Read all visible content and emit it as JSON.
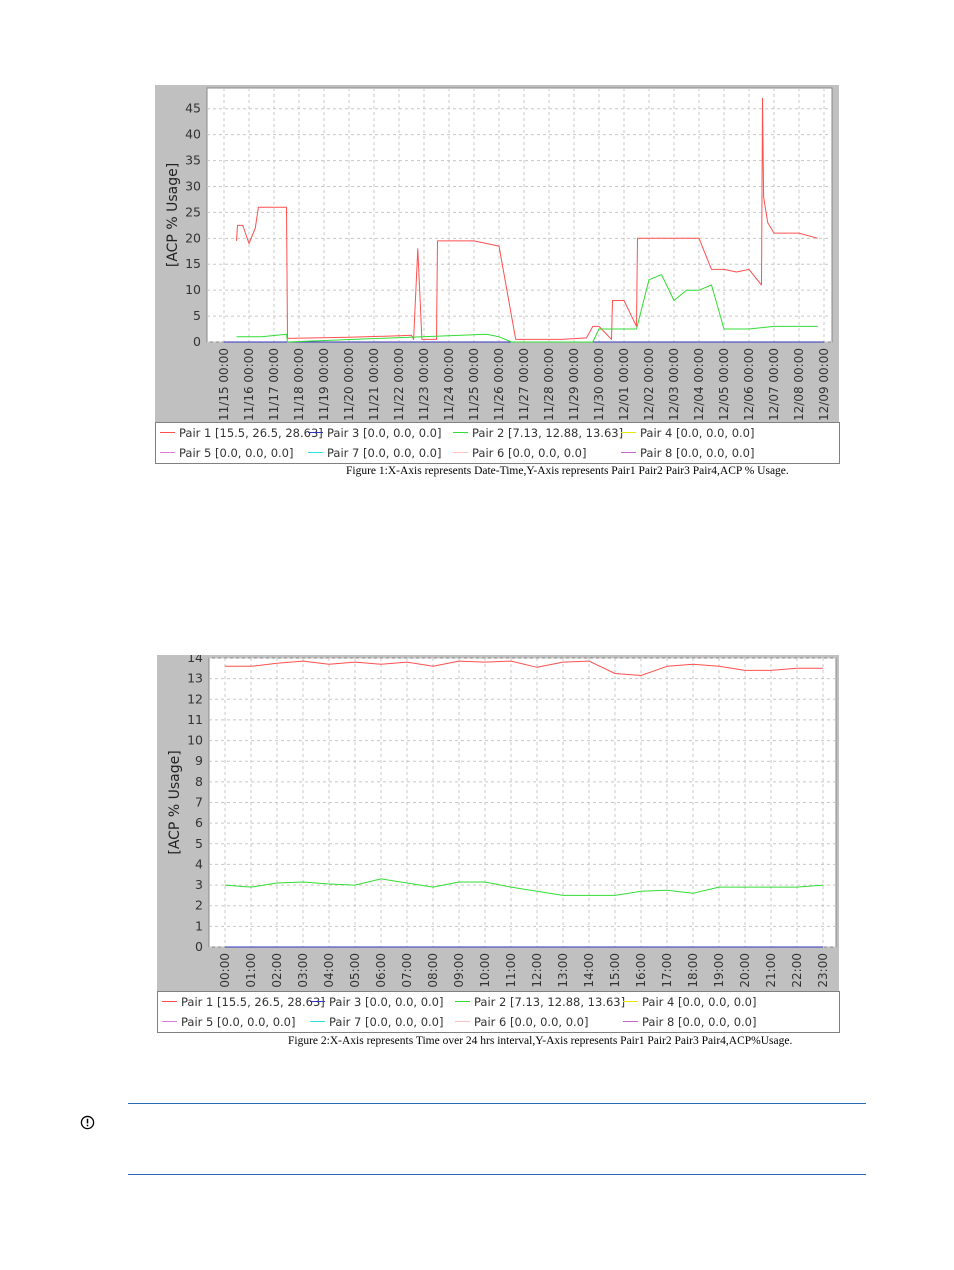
{
  "colors": {
    "pair1": "#ff5050",
    "pair2": "#33dd33",
    "pair3": "#3333bb",
    "pair4": "#e6e600",
    "pair5": "#e07ad8",
    "pair6": "#ffc0c0",
    "pair7": "#30e0e0",
    "pair8": "#cc66cc",
    "frame": "#c0c0c0",
    "grid": "#c8c8c8",
    "rule": "#2b6cb0"
  },
  "chart_data": [
    {
      "type": "line",
      "ylabel": "[ACP % Usage]",
      "xlabel": "",
      "ylim": [
        0,
        49
      ],
      "yticks": [
        0,
        5,
        10,
        15,
        20,
        25,
        30,
        35,
        40,
        45
      ],
      "x_tick_labels": [
        "11/15 00:00",
        "11/16 00:00",
        "11/17 00:00",
        "11/18 00:00",
        "11/19 00:00",
        "11/20 00:00",
        "11/21 00:00",
        "11/22 00:00",
        "11/23 00:00",
        "11/24 00:00",
        "11/25 00:00",
        "11/26 00:00",
        "11/27 00:00",
        "11/28 00:00",
        "11/29 00:00",
        "11/30 00:00",
        "12/01 00:00",
        "12/02 00:00",
        "12/03 00:00",
        "12/04 00:00",
        "12/05 00:00",
        "12/06 00:00",
        "12/07 00:00",
        "12/08 00:00",
        "12/09 00:00"
      ],
      "grid": true,
      "series": [
        {
          "name": "Pair 1",
          "color_key": "pair1",
          "x": [
            "11/15 12:00",
            "11/15 13:00",
            "11/15 18:00",
            "11/16 00:00",
            "11/16 06:00",
            "11/16 09:00",
            "11/16 15:00",
            "11/17 00:00",
            "11/17 12:00",
            "11/17 13:00",
            "11/20 00:00",
            "11/22 00:00",
            "11/22 12:00",
            "11/22 14:00",
            "11/22 18:00",
            "11/22 22:00",
            "11/23 12:00",
            "11/23 13:00",
            "11/24 00:00",
            "11/25 00:00",
            "11/26 00:00",
            "11/26 16:00",
            "11/27 12:00",
            "11/28 12:00",
            "11/29 12:00",
            "11/29 18:00",
            "11/30 00:00",
            "11/30 12:00",
            "11/30 13:00",
            "12/01 00:00",
            "12/01 12:00",
            "12/01 13:00",
            "12/02 00:00",
            "12/02 12:00",
            "12/03 00:00",
            "12/04 00:00",
            "12/04 12:00",
            "12/05 00:00",
            "12/05 12:00",
            "12/06 00:00",
            "12/06 12:00",
            "12/06 13:00",
            "12/06 14:00",
            "12/06 18:00",
            "12/07 00:00",
            "12/08 00:00",
            "12/08 18:00"
          ],
          "values": [
            19.5,
            22.5,
            22.5,
            19,
            22,
            26,
            26,
            26,
            26,
            0.7,
            0.9,
            1.2,
            1.3,
            0.5,
            18,
            0.5,
            0.5,
            19.5,
            19.5,
            19.5,
            18.5,
            0.5,
            0.5,
            0.5,
            0.8,
            3,
            3,
            0.5,
            8,
            8,
            3,
            20,
            20,
            20,
            20,
            20,
            14,
            14,
            13.5,
            14,
            11,
            47,
            28,
            23,
            21,
            21,
            20
          ]
        },
        {
          "name": "Pair 3",
          "color_key": "pair3",
          "x": [
            "11/15 00:00",
            "12/09 00:00"
          ],
          "values": [
            0.0,
            0.0
          ]
        },
        {
          "name": "Pair 2",
          "color_key": "pair2",
          "x": [
            "11/15 12:00",
            "11/16 12:00",
            "11/17 12:00",
            "11/17 13:00",
            "11/25 12:00",
            "11/26 00:00",
            "11/26 12:00",
            "11/27 00:00",
            "11/29 18:00",
            "11/30 00:00",
            "11/30 12:00",
            "12/01 00:00",
            "12/01 12:00",
            "12/02 00:00",
            "12/02 12:00",
            "12/03 00:00",
            "12/03 12:00",
            "12/04 00:00",
            "12/04 12:00",
            "12/05 00:00",
            "12/06 00:00",
            "12/07 00:00",
            "12/08 00:00",
            "12/08 18:00"
          ],
          "values": [
            1.0,
            1.0,
            1.5,
            0.0,
            1.5,
            1.0,
            0.0,
            0.0,
            0.0,
            2.5,
            2.5,
            2.5,
            2.5,
            12,
            13,
            8,
            10,
            10,
            11,
            2.5,
            2.5,
            3.0,
            3.0,
            3.0
          ]
        }
      ],
      "legend": {
        "placement": "bottom",
        "entries": [
          {
            "label": "Pair 1 [15.5, 26.5, 28.63]",
            "color_key": "pair1"
          },
          {
            "label": "Pair 3 [0.0, 0.0, 0.0]",
            "color_key": "pair3"
          },
          {
            "label": "Pair 2 [7.13, 12.88, 13.63]",
            "color_key": "pair2"
          },
          {
            "label": "Pair 4 [0.0, 0.0, 0.0]",
            "color_key": "pair4"
          },
          {
            "label": "Pair 5 [0.0, 0.0, 0.0]",
            "color_key": "pair5"
          },
          {
            "label": "Pair 7 [0.0, 0.0, 0.0]",
            "color_key": "pair7"
          },
          {
            "label": "Pair 6 [0.0, 0.0, 0.0]",
            "color_key": "pair6"
          },
          {
            "label": "Pair 8 [0.0, 0.0, 0.0]",
            "color_key": "pair8"
          }
        ]
      },
      "caption": "Figure 1:X-Axis represents Date-Time,Y-Axis represents Pair1 Pair2 Pair3 Pair4,ACP % Usage."
    },
    {
      "type": "line",
      "ylabel": "[ACP % Usage]",
      "xlabel": "",
      "ylim": [
        0,
        14
      ],
      "yticks": [
        0,
        1,
        2,
        3,
        4,
        5,
        6,
        7,
        8,
        9,
        10,
        11,
        12,
        13,
        14
      ],
      "x_tick_labels": [
        "00:00",
        "01:00",
        "02:00",
        "03:00",
        "04:00",
        "05:00",
        "06:00",
        "07:00",
        "08:00",
        "09:00",
        "10:00",
        "11:00",
        "12:00",
        "13:00",
        "14:00",
        "15:00",
        "16:00",
        "17:00",
        "18:00",
        "19:00",
        "20:00",
        "21:00",
        "22:00",
        "23:00"
      ],
      "grid": true,
      "series": [
        {
          "name": "Pair 1",
          "color_key": "pair1",
          "x": [
            "00:00",
            "01:00",
            "02:00",
            "03:00",
            "04:00",
            "05:00",
            "06:00",
            "07:00",
            "08:00",
            "09:00",
            "10:00",
            "11:00",
            "12:00",
            "13:00",
            "14:00",
            "15:00",
            "16:00",
            "17:00",
            "18:00",
            "19:00",
            "20:00",
            "21:00",
            "22:00",
            "23:00"
          ],
          "values": [
            13.6,
            13.6,
            13.75,
            13.85,
            13.7,
            13.8,
            13.7,
            13.8,
            13.6,
            13.85,
            13.8,
            13.85,
            13.55,
            13.8,
            13.85,
            13.25,
            13.15,
            13.6,
            13.7,
            13.6,
            13.4,
            13.4,
            13.5,
            13.5
          ]
        },
        {
          "name": "Pair 3",
          "color_key": "pair3",
          "x": [
            "00:00",
            "23:00"
          ],
          "values": [
            0.0,
            0.0
          ]
        },
        {
          "name": "Pair 2",
          "color_key": "pair2",
          "x": [
            "00:00",
            "01:00",
            "02:00",
            "03:00",
            "04:00",
            "05:00",
            "06:00",
            "07:00",
            "08:00",
            "09:00",
            "10:00",
            "11:00",
            "12:00",
            "13:00",
            "14:00",
            "15:00",
            "16:00",
            "17:00",
            "18:00",
            "19:00",
            "20:00",
            "21:00",
            "22:00",
            "23:00"
          ],
          "values": [
            3.0,
            2.9,
            3.1,
            3.15,
            3.05,
            3.0,
            3.3,
            3.1,
            2.9,
            3.15,
            3.15,
            2.9,
            2.7,
            2.5,
            2.5,
            2.5,
            2.7,
            2.75,
            2.6,
            2.9,
            2.9,
            2.9,
            2.9,
            3.0
          ]
        }
      ],
      "legend": {
        "placement": "bottom",
        "entries": [
          {
            "label": "Pair 1 [15.5, 26.5, 28.63]",
            "color_key": "pair1"
          },
          {
            "label": "Pair 3 [0.0, 0.0, 0.0]",
            "color_key": "pair3"
          },
          {
            "label": "Pair 2 [7.13, 12.88, 13.63]",
            "color_key": "pair2"
          },
          {
            "label": "Pair 4 [0.0, 0.0, 0.0]",
            "color_key": "pair4"
          },
          {
            "label": "Pair 5 [0.0, 0.0, 0.0]",
            "color_key": "pair5"
          },
          {
            "label": "Pair 7 [0.0, 0.0, 0.0]",
            "color_key": "pair7"
          },
          {
            "label": "Pair 6 [0.0, 0.0, 0.0]",
            "color_key": "pair6"
          },
          {
            "label": "Pair 8 [0.0, 0.0, 0.0]",
            "color_key": "pair8"
          }
        ]
      },
      "caption": "Figure 2:X-Axis represents Time over 24 hrs interval,Y-Axis represents Pair1 Pair2 Pair3 Pair4,ACP%Usage."
    }
  ],
  "note": {
    "icon": "important-icon"
  }
}
